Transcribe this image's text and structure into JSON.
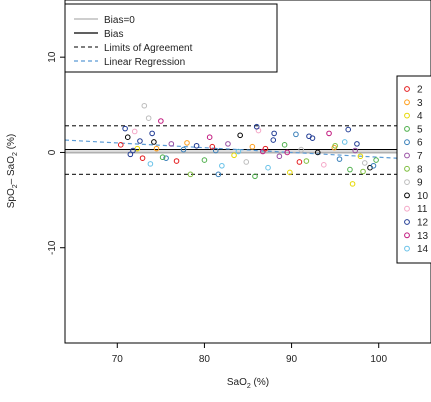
{
  "chart_data": {
    "type": "scatter",
    "xlabel": "SaO",
    "xlabel_sub": "2",
    "xlabel_unit": " (%)",
    "ylabel_parts": [
      "SpO",
      "2",
      "– SaO",
      "2",
      " (%)"
    ],
    "xlim": [
      64,
      106
    ],
    "ylim": [
      -20,
      16
    ],
    "xticks": [
      70,
      80,
      90,
      100
    ],
    "yticks": [
      -10,
      0,
      10
    ],
    "legend_placement": "top-left",
    "lines": [
      {
        "name": "Bias=0",
        "style": "solid",
        "color": "#b0b0b0",
        "y": 0
      },
      {
        "name": "Bias",
        "style": "solid",
        "color": "#000000",
        "y": 0.3
      },
      {
        "name": "Limits of Agreement",
        "style": "dashed",
        "color": "#333333",
        "y": [
          2.8,
          -2.3
        ]
      },
      {
        "name": "Linear Regression",
        "style": "dashed",
        "color": "#5b9bd5",
        "x": [
          64,
          106
        ],
        "y": [
          1.3,
          -0.8
        ]
      }
    ],
    "subject_legend": {
      "labels": [
        "2",
        "3",
        "4",
        "5",
        "6",
        "7",
        "8",
        "9",
        "10",
        "11",
        "12",
        "13",
        "14"
      ],
      "colors": [
        "#e41a1c",
        "#ff9f1c",
        "#e6d800",
        "#4daf4a",
        "#377eb8",
        "#984ea3",
        "#7fbf3f",
        "#bdbdbd",
        "#000000",
        "#f4a6c6",
        "#1f3a93",
        "#c2187e",
        "#67c1e8"
      ]
    },
    "points": [
      {
        "x": 70.4,
        "y": 0.8,
        "s": 0
      },
      {
        "x": 71.2,
        "y": 1.6,
        "s": 8
      },
      {
        "x": 72.0,
        "y": 2.2,
        "s": 9
      },
      {
        "x": 72.6,
        "y": 1.2,
        "s": 10
      },
      {
        "x": 73.1,
        "y": 4.9,
        "s": 7
      },
      {
        "x": 73.6,
        "y": 3.6,
        "s": 7
      },
      {
        "x": 74.0,
        "y": 2.0,
        "s": 10
      },
      {
        "x": 74.5,
        "y": 0.4,
        "s": 1
      },
      {
        "x": 75.0,
        "y": 3.3,
        "s": 11
      },
      {
        "x": 75.6,
        "y": -0.6,
        "s": 4
      },
      {
        "x": 76.2,
        "y": 0.9,
        "s": 5
      },
      {
        "x": 71.5,
        "y": -0.2,
        "s": 10
      },
      {
        "x": 72.3,
        "y": 0.4,
        "s": 2
      },
      {
        "x": 73.8,
        "y": -1.2,
        "s": 12
      },
      {
        "x": 75.2,
        "y": -0.5,
        "s": 3
      },
      {
        "x": 70.9,
        "y": 2.5,
        "s": 10
      },
      {
        "x": 71.8,
        "y": 0.2,
        "s": 10
      },
      {
        "x": 74.2,
        "y": 1.1,
        "s": 8
      },
      {
        "x": 77.6,
        "y": 0.3,
        "s": 4
      },
      {
        "x": 78.4,
        "y": -2.3,
        "s": 6
      },
      {
        "x": 79.1,
        "y": 0.7,
        "s": 10
      },
      {
        "x": 80.0,
        "y": -0.8,
        "s": 3
      },
      {
        "x": 80.6,
        "y": 1.6,
        "s": 11
      },
      {
        "x": 81.3,
        "y": 0.2,
        "s": 4
      },
      {
        "x": 82.0,
        "y": -1.4,
        "s": 12
      },
      {
        "x": 82.7,
        "y": 0.9,
        "s": 5
      },
      {
        "x": 83.4,
        "y": -0.3,
        "s": 2
      },
      {
        "x": 84.1,
        "y": 1.8,
        "s": 8
      },
      {
        "x": 84.8,
        "y": -1.0,
        "s": 7
      },
      {
        "x": 85.5,
        "y": 0.6,
        "s": 1
      },
      {
        "x": 86.2,
        "y": 2.3,
        "s": 9
      },
      {
        "x": 86.7,
        "y": 0.1,
        "s": 11
      },
      {
        "x": 87.3,
        "y": -1.6,
        "s": 12
      },
      {
        "x": 87.9,
        "y": 1.3,
        "s": 10
      },
      {
        "x": 88.6,
        "y": -0.4,
        "s": 5
      },
      {
        "x": 89.2,
        "y": 0.8,
        "s": 3
      },
      {
        "x": 89.8,
        "y": -2.1,
        "s": 2
      },
      {
        "x": 90.5,
        "y": 1.9,
        "s": 4
      },
      {
        "x": 91.1,
        "y": 0.3,
        "s": 7
      },
      {
        "x": 91.7,
        "y": -0.9,
        "s": 6
      },
      {
        "x": 92.4,
        "y": 1.5,
        "s": 10
      },
      {
        "x": 93.0,
        "y": 0.0,
        "s": 8
      },
      {
        "x": 93.7,
        "y": -1.3,
        "s": 9
      },
      {
        "x": 94.3,
        "y": 2.0,
        "s": 11
      },
      {
        "x": 94.9,
        "y": 0.5,
        "s": 1
      },
      {
        "x": 95.5,
        "y": -0.7,
        "s": 4
      },
      {
        "x": 96.1,
        "y": 1.1,
        "s": 12
      },
      {
        "x": 96.7,
        "y": -1.8,
        "s": 3
      },
      {
        "x": 97.3,
        "y": 0.2,
        "s": 5
      },
      {
        "x": 97.9,
        "y": -0.4,
        "s": 2
      },
      {
        "x": 98.4,
        "y": -1.1,
        "s": 7
      },
      {
        "x": 99.0,
        "y": -1.6,
        "s": 8
      },
      {
        "x": 86.0,
        "y": 2.7,
        "s": 10
      },
      {
        "x": 88.0,
        "y": 2.0,
        "s": 10
      },
      {
        "x": 92.0,
        "y": 1.7,
        "s": 10
      },
      {
        "x": 96.5,
        "y": 2.4,
        "s": 10
      },
      {
        "x": 97.5,
        "y": 0.9,
        "s": 10
      },
      {
        "x": 85.8,
        "y": -2.5,
        "s": 3
      },
      {
        "x": 97.0,
        "y": -3.3,
        "s": 2
      },
      {
        "x": 98.2,
        "y": -2.0,
        "s": 6
      },
      {
        "x": 81.6,
        "y": -2.3,
        "s": 4
      },
      {
        "x": 78.0,
        "y": 1.0,
        "s": 1
      },
      {
        "x": 76.8,
        "y": -0.9,
        "s": 0
      },
      {
        "x": 72.9,
        "y": -0.6,
        "s": 0
      },
      {
        "x": 83.9,
        "y": 0.1,
        "s": 12
      },
      {
        "x": 89.5,
        "y": 0.0,
        "s": 11
      },
      {
        "x": 95.0,
        "y": 0.7,
        "s": 6
      },
      {
        "x": 90.9,
        "y": -1.0,
        "s": 0
      },
      {
        "x": 87.0,
        "y": 0.4,
        "s": 0
      },
      {
        "x": 80.9,
        "y": 0.6,
        "s": 0
      },
      {
        "x": 99.4,
        "y": -1.4,
        "s": 4
      },
      {
        "x": 99.7,
        "y": -0.8,
        "s": 3
      }
    ]
  }
}
